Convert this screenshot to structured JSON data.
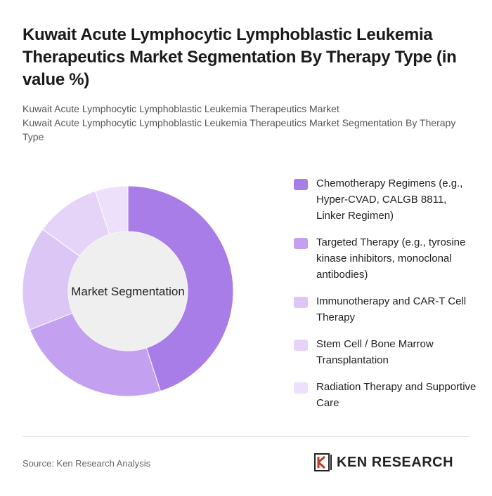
{
  "header": {
    "title": "Kuwait Acute Lymphocytic Lymphoblastic Leukemia Therapeutics Market Segmentation By Therapy Type (in value %)",
    "subtitle": [
      "Kuwait Acute Lymphocytic Lymphoblastic Leukemia Therapeutics Market",
      "Kuwait Acute Lymphocytic Lymphoblastic Leukemia Therapeutics Market Segmentation By Therapy Type"
    ]
  },
  "chart_data": {
    "type": "donut",
    "center_label": "Market Segmentation",
    "categories": [
      "Chemotherapy Regimens (e.g., Hyper-CVAD, CALGB 8811, Linker Regimen)",
      "Targeted Therapy (e.g., tyrosine kinase inhibitors, monoclonal antibodies)",
      "Immunotherapy and CAR-T Cell Therapy",
      "Stem Cell / Bone Marrow Transplantation",
      "Radiation Therapy and Supportive Care"
    ],
    "values": [
      45,
      24,
      16,
      10,
      5
    ],
    "colors": [
      "#a97de8",
      "#c4a0f0",
      "#dcc6f6",
      "#e5d4f8",
      "#ece0fa"
    ]
  },
  "footer": {
    "source": "Source: Ken Research Analysis",
    "logo": "KEN RESEARCH"
  }
}
